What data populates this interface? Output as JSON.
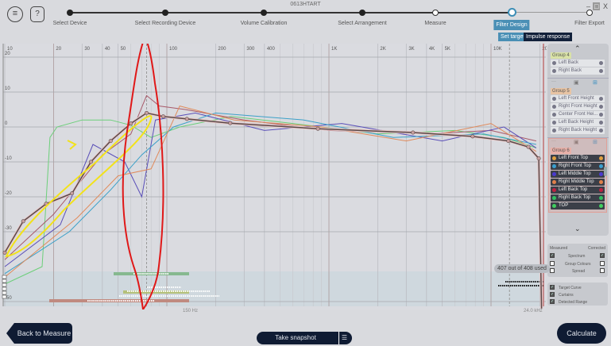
{
  "window": {
    "title": "0613HTART",
    "minimize": "–",
    "maximize": "□",
    "close": "X"
  },
  "toolbar": {
    "menu_icon": "≡",
    "help_icon": "?"
  },
  "steps": [
    {
      "label": "Select Device",
      "state": "done"
    },
    {
      "label": "Select Recording Device",
      "state": "done"
    },
    {
      "label": "Volume Calibration",
      "state": "done"
    },
    {
      "label": "Select Arrangement",
      "state": "done"
    },
    {
      "label": "Measure",
      "state": "open"
    },
    {
      "label": "Filter Design",
      "state": "current"
    },
    {
      "label": "Filter Export",
      "state": "open"
    }
  ],
  "substeps": {
    "set_target": "Set target",
    "impulse_response": "Impulse response"
  },
  "chart_data": {
    "type": "line",
    "x_scale": "log",
    "xlim": [
      10,
      24000
    ],
    "ylim": [
      -52,
      22
    ],
    "x_ticks": [
      "10",
      "20",
      "30",
      "40",
      "50",
      "100",
      "200",
      "300",
      "400",
      "1K",
      "2K",
      "3K",
      "4K",
      "5K",
      "10K",
      "20K"
    ],
    "y_ticks": [
      "20",
      "10",
      "0",
      "-10",
      "-20",
      "-30",
      "-50"
    ],
    "grid": true,
    "series": [
      {
        "role": "target",
        "color": "#5a4a4a",
        "points": [
          [
            10,
            -36
          ],
          [
            13,
            -27
          ],
          [
            18,
            -22
          ],
          [
            26,
            -19
          ],
          [
            34,
            -10
          ],
          [
            45,
            -4
          ],
          [
            60,
            1
          ],
          [
            75,
            4
          ],
          [
            95,
            3
          ],
          [
            133,
            2.3
          ],
          [
            246,
            1.1
          ],
          [
            855,
            -0.5
          ],
          [
            3300,
            -1.6
          ],
          [
            7700,
            -2.7
          ],
          [
            12800,
            -4
          ],
          [
            17000,
            -5.7
          ],
          [
            19700,
            -9
          ],
          [
            20500,
            -52
          ]
        ]
      },
      {
        "color": "#6ccf7a",
        "points": [
          [
            10,
            -45
          ],
          [
            17,
            -40
          ],
          [
            19,
            -3
          ],
          [
            21,
            0
          ],
          [
            30,
            2
          ],
          [
            45,
            2
          ],
          [
            60,
            0.5
          ],
          [
            80,
            -3
          ],
          [
            120,
            0
          ],
          [
            250,
            3
          ],
          [
            600,
            1
          ],
          [
            2000,
            -2
          ],
          [
            6000,
            -1
          ],
          [
            12000,
            -3
          ],
          [
            19000,
            -6
          ]
        ]
      },
      {
        "color": "#a85a6a",
        "points": [
          [
            10,
            -38
          ],
          [
            20,
            -25
          ],
          [
            40,
            -8
          ],
          [
            60,
            -2
          ],
          [
            75,
            9
          ],
          [
            90,
            6
          ],
          [
            130,
            5
          ],
          [
            300,
            2
          ],
          [
            1000,
            -1
          ],
          [
            4000,
            -2
          ],
          [
            10000,
            -1
          ],
          [
            19000,
            -4
          ]
        ]
      },
      {
        "color": "#5a4fb8",
        "points": [
          [
            10,
            -40
          ],
          [
            22,
            -28
          ],
          [
            35,
            -5
          ],
          [
            55,
            -10
          ],
          [
            70,
            -20
          ],
          [
            85,
            2
          ],
          [
            150,
            4
          ],
          [
            400,
            -1
          ],
          [
            1200,
            1
          ],
          [
            5000,
            -4
          ],
          [
            12000,
            0
          ],
          [
            19000,
            -6
          ]
        ]
      },
      {
        "color": "#3aa0c8",
        "points": [
          [
            10,
            -42
          ],
          [
            25,
            -30
          ],
          [
            45,
            -18
          ],
          [
            70,
            -8
          ],
          [
            110,
            0
          ],
          [
            200,
            4
          ],
          [
            700,
            2
          ],
          [
            2500,
            -3
          ],
          [
            9000,
            -2
          ],
          [
            19000,
            -5
          ]
        ]
      },
      {
        "color": "#e08a5a",
        "points": [
          [
            10,
            -43
          ],
          [
            28,
            -26
          ],
          [
            50,
            -14
          ],
          [
            80,
            -12
          ],
          [
            120,
            6
          ],
          [
            260,
            2
          ],
          [
            900,
            0
          ],
          [
            3000,
            -4
          ],
          [
            10000,
            1
          ],
          [
            19000,
            -7
          ]
        ]
      }
    ],
    "bottom_label": "150 Hz",
    "top_label": "24.0 kHz",
    "used": "407 out of 408 used"
  },
  "groups": [
    {
      "name": "Group 4",
      "color": "#d9e2a6",
      "items": [
        "Left Back",
        "Right Back"
      ],
      "style": "light"
    },
    {
      "name": "Group 5",
      "color": "#e8c4a4",
      "items": [
        "Left Front Height",
        "Right Front Height",
        "Center Front Hei...",
        "Left Back Height",
        "Right Back Height"
      ],
      "style": "light"
    },
    {
      "name": "Group 6",
      "color": "#e8b0a8",
      "items": [
        {
          "label": "Left Front Top",
          "color": "#e0a040"
        },
        {
          "label": "Right Front Top",
          "color": "#3aa0d0"
        },
        {
          "label": "Left Middle Top",
          "color": "#4a3ad0"
        },
        {
          "label": "Right Middle Top",
          "color": "#e0804a"
        },
        {
          "label": "Left Back Top",
          "color": "#c02040"
        },
        {
          "label": "Right Back Top",
          "color": "#30c060"
        },
        {
          "label": "TOP",
          "color": "#40d060"
        }
      ],
      "style": "dark"
    }
  ],
  "display": {
    "measured": "Measured",
    "corrected": "Corrected",
    "spectrum": "Spectrum",
    "group_colours": "Group Colours",
    "spread": "Spread",
    "target_curve": "Target Curve",
    "curtains": "Curtains",
    "detected_range": "Detected Range"
  },
  "buttons": {
    "back": "Back to Measure",
    "snapshot": "Take snapshot",
    "calculate": "Calculate"
  }
}
